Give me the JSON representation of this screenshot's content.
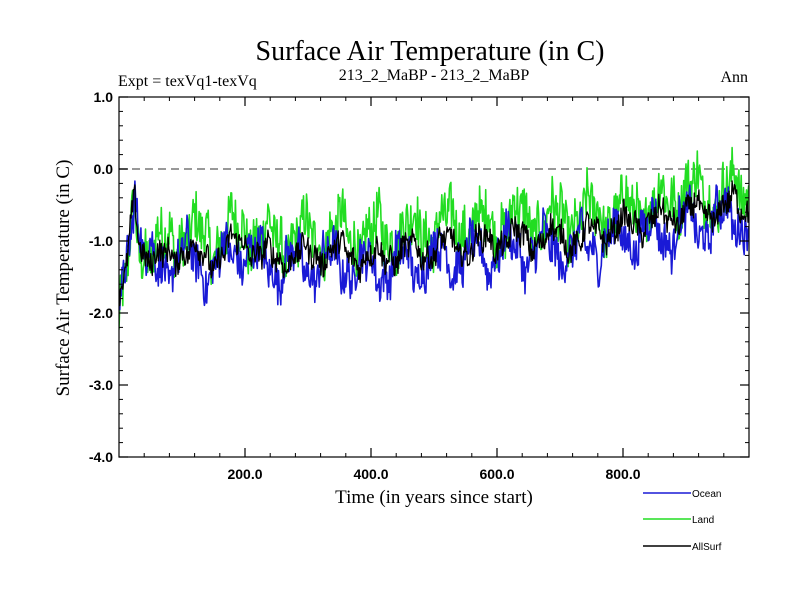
{
  "chart_data": {
    "type": "line",
    "title": "Surface Air Temperature (in C)",
    "subtitle_left": "Expt = texVq1-texVq",
    "subtitle_center": "213_2_MaBP - 213_2_MaBP",
    "subtitle_right": "Ann",
    "xlabel": "Time (in years since start)",
    "ylabel": "Surface Air Temperature (in C)",
    "xlim": [
      0,
      1000
    ],
    "ylim": [
      -4.0,
      1.0
    ],
    "x_ticks": [
      200,
      400,
      600,
      800
    ],
    "x_tick_labels": [
      "200.0",
      "400.0",
      "600.0",
      "800.0"
    ],
    "y_ticks": [
      -4.0,
      -3.0,
      -2.0,
      -1.0,
      0.0,
      1.0
    ],
    "y_tick_labels": [
      "-4.0",
      "-3.0",
      "-2.0",
      "-1.0",
      "0.0",
      "1.0"
    ],
    "reference_line": {
      "y": 0.0,
      "style": "dashed",
      "color": "#777777"
    },
    "legend_position": "bottom-right",
    "series": [
      {
        "name": "Ocean",
        "color": "#1a1ad6",
        "x": [
          0,
          10,
          20,
          25,
          30,
          40,
          60,
          80,
          100,
          125,
          150,
          175,
          200,
          225,
          250,
          275,
          300,
          325,
          350,
          375,
          400,
          425,
          450,
          475,
          500,
          525,
          550,
          575,
          600,
          625,
          650,
          675,
          700,
          725,
          750,
          775,
          800,
          825,
          850,
          875,
          900,
          925,
          950,
          975,
          1000
        ],
        "values": [
          -1.8,
          -1.5,
          -0.6,
          -0.05,
          -0.7,
          -1.2,
          -1.4,
          -1.3,
          -1.2,
          -1.3,
          -1.4,
          -1.2,
          -1.1,
          -1.3,
          -1.35,
          -1.3,
          -1.35,
          -1.3,
          -1.3,
          -1.35,
          -1.4,
          -1.35,
          -1.3,
          -1.3,
          -1.25,
          -1.2,
          -1.25,
          -1.2,
          -1.15,
          -1.1,
          -1.15,
          -1.1,
          -1.1,
          -1.15,
          -1.05,
          -1.0,
          -0.95,
          -0.9,
          -0.85,
          -0.9,
          -0.75,
          -0.8,
          -0.7,
          -0.65,
          -0.7
        ]
      },
      {
        "name": "Land",
        "color": "#22dd22",
        "x": [
          0,
          10,
          20,
          25,
          30,
          40,
          60,
          80,
          100,
          125,
          150,
          175,
          200,
          225,
          250,
          275,
          300,
          325,
          350,
          375,
          400,
          425,
          450,
          475,
          500,
          525,
          550,
          575,
          600,
          625,
          650,
          675,
          700,
          725,
          750,
          775,
          800,
          825,
          850,
          875,
          900,
          925,
          950,
          975,
          1000
        ],
        "values": [
          -2.2,
          -1.7,
          -0.9,
          -0.5,
          -0.9,
          -1.1,
          -1.1,
          -1.0,
          -0.9,
          -0.95,
          -1.0,
          -0.9,
          -0.85,
          -0.95,
          -1.0,
          -1.0,
          -0.95,
          -0.9,
          -0.9,
          -0.95,
          -0.95,
          -0.9,
          -0.85,
          -0.85,
          -0.8,
          -0.8,
          -0.75,
          -0.8,
          -0.75,
          -0.7,
          -0.7,
          -0.75,
          -0.7,
          -0.7,
          -0.65,
          -0.6,
          -0.6,
          -0.55,
          -0.5,
          -0.45,
          -0.2,
          -0.4,
          -0.35,
          -0.3,
          -0.35
        ]
      },
      {
        "name": "AllSurf",
        "color": "#000000",
        "x": [
          0,
          10,
          20,
          25,
          30,
          40,
          60,
          80,
          100,
          125,
          150,
          175,
          200,
          225,
          250,
          275,
          300,
          325,
          350,
          375,
          400,
          425,
          450,
          475,
          500,
          525,
          550,
          575,
          600,
          625,
          650,
          675,
          700,
          725,
          750,
          775,
          800,
          825,
          850,
          875,
          900,
          925,
          950,
          975,
          1000
        ],
        "values": [
          -1.9,
          -1.55,
          -0.75,
          -0.4,
          -0.8,
          -1.15,
          -1.3,
          -1.2,
          -1.1,
          -1.2,
          -1.25,
          -1.1,
          -1.0,
          -1.2,
          -1.25,
          -1.2,
          -1.2,
          -1.15,
          -1.15,
          -1.2,
          -1.25,
          -1.2,
          -1.15,
          -1.15,
          -1.1,
          -1.05,
          -1.1,
          -1.05,
          -1.0,
          -0.95,
          -1.0,
          -0.95,
          -0.95,
          -1.0,
          -0.9,
          -0.85,
          -0.8,
          -0.75,
          -0.7,
          -0.7,
          -0.55,
          -0.65,
          -0.55,
          -0.5,
          -0.55
        ]
      }
    ]
  }
}
